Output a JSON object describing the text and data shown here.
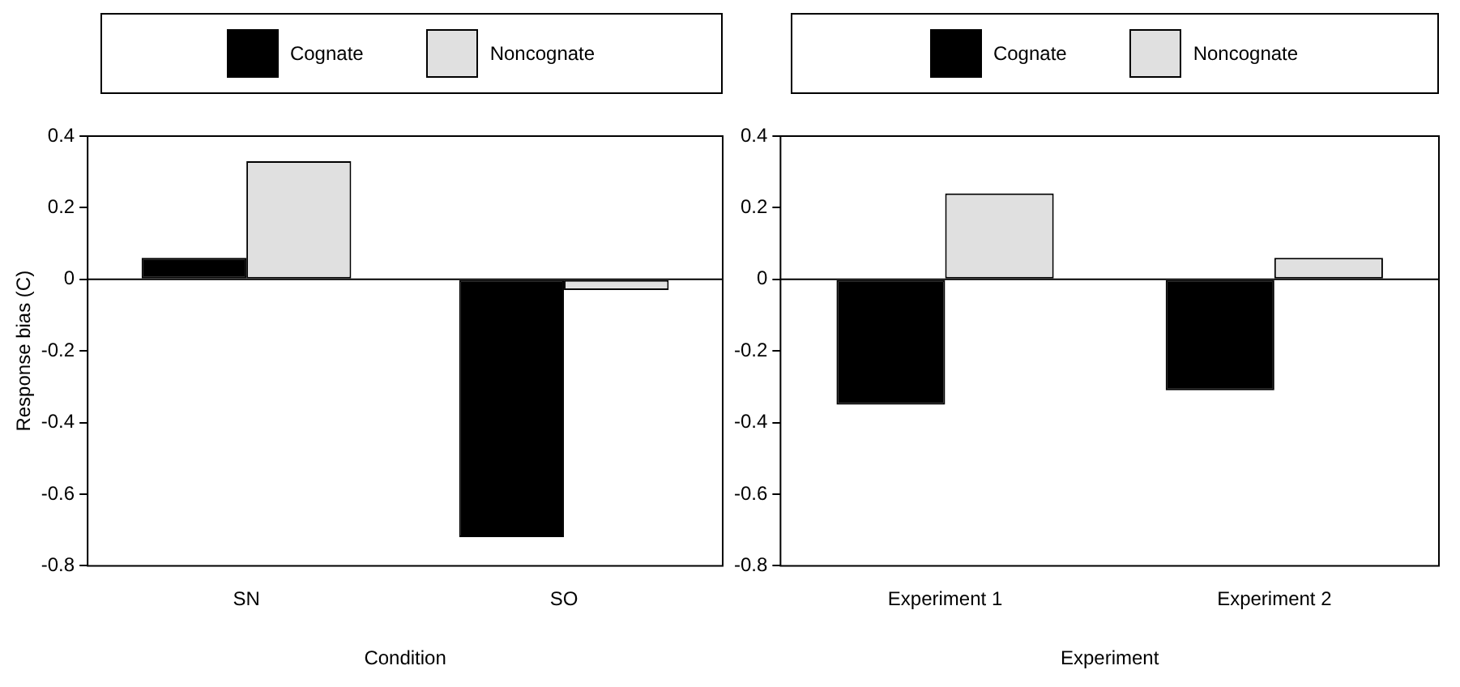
{
  "chart_data": [
    {
      "type": "bar",
      "xlabel": "Condition",
      "ylabel": "Response bias (C)",
      "categories": [
        "SN",
        "SO"
      ],
      "series": [
        {
          "name": "Cognate",
          "color": "#000000",
          "values": [
            0.06,
            -0.72
          ]
        },
        {
          "name": "Noncognate",
          "color": "#e0e0e0",
          "values": [
            0.33,
            -0.03
          ]
        }
      ],
      "ylim": [
        -0.8,
        0.4
      ],
      "yticks": [
        -0.8,
        -0.6,
        -0.4,
        -0.2,
        0,
        0.2,
        0.4
      ],
      "grid": false,
      "legend": "top",
      "ref_lines": [
        {
          "axis": "y",
          "value": 0
        }
      ]
    },
    {
      "type": "bar",
      "xlabel": "Experiment",
      "categories": [
        "Experiment 1",
        "Experiment 2"
      ],
      "series": [
        {
          "name": "Cognate",
          "color": "#000000",
          "values": [
            -0.35,
            -0.31
          ]
        },
        {
          "name": "Noncognate",
          "color": "#e0e0e0",
          "values": [
            0.24,
            0.06
          ]
        }
      ],
      "ylim": [
        -0.8,
        0.4
      ],
      "yticks": [
        -0.8,
        -0.6,
        -0.4,
        -0.2,
        0,
        0.2,
        0.4
      ],
      "grid": false,
      "legend": "top",
      "ref_lines": [
        {
          "axis": "y",
          "value": 0
        }
      ]
    }
  ]
}
